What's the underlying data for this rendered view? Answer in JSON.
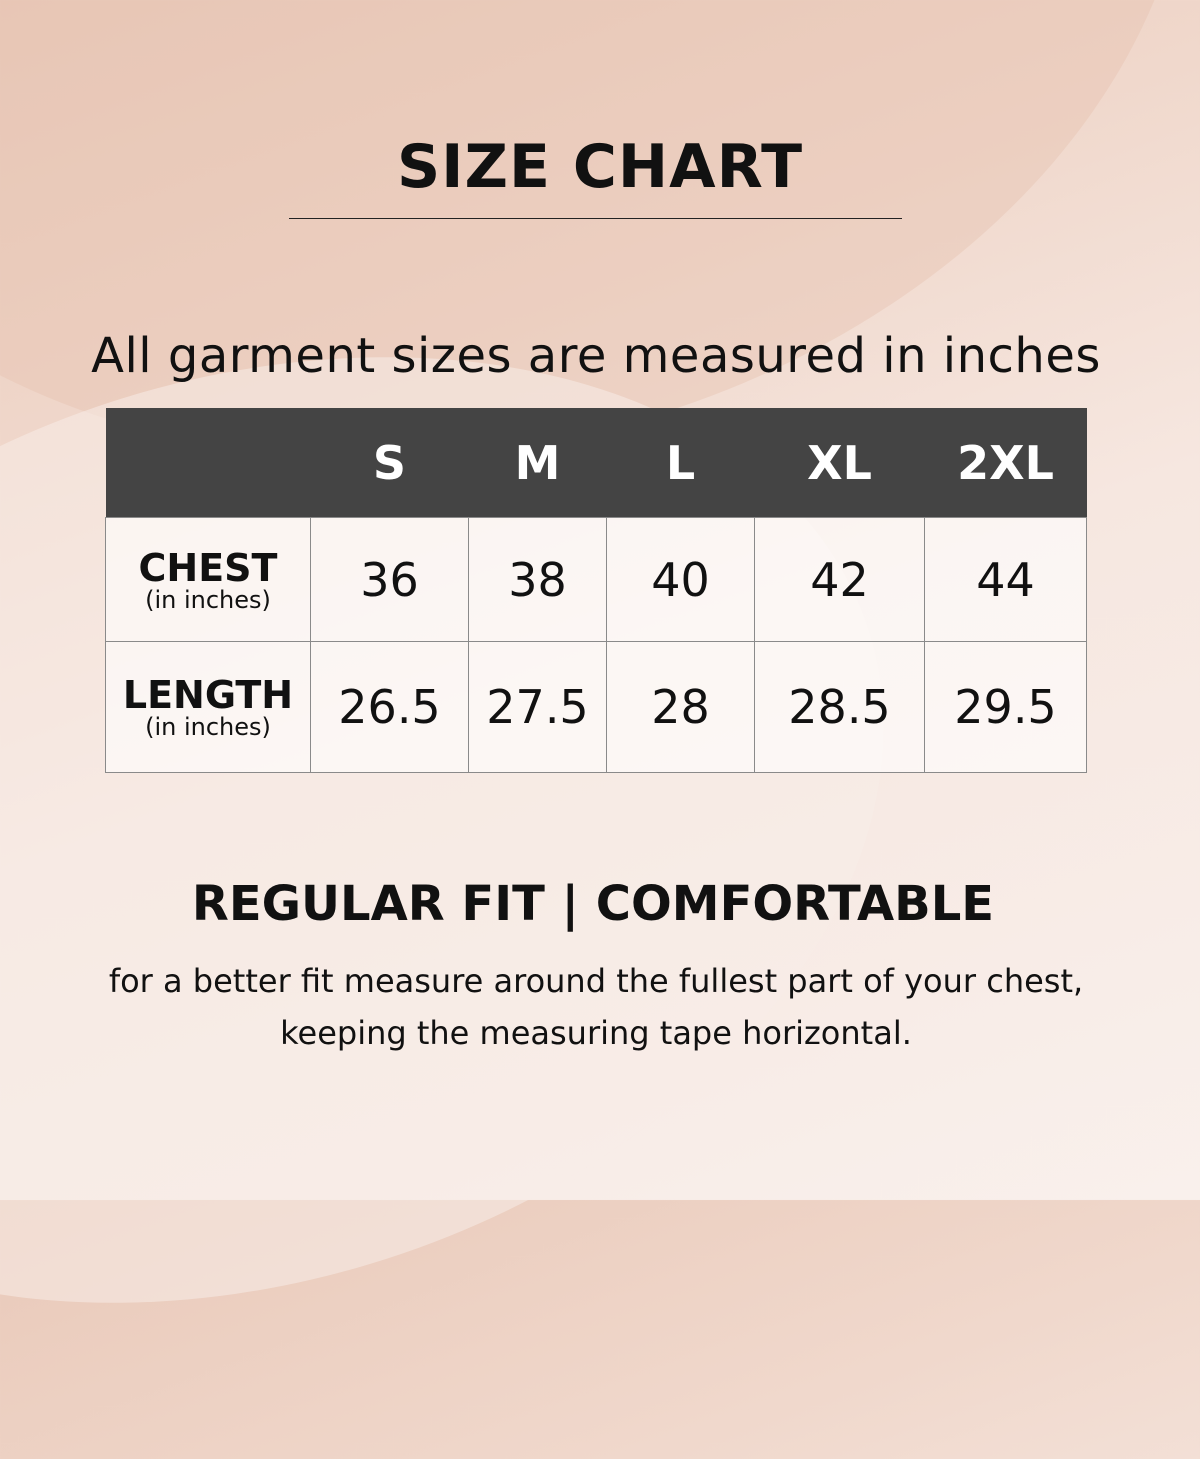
{
  "title": "SIZE CHART",
  "subtitle": "All garment sizes are measured in inches",
  "table": {
    "headers": [
      "",
      "S",
      "M",
      "L",
      "XL",
      "2XL"
    ],
    "rows": [
      {
        "label": "CHEST",
        "unit": "(in inches)",
        "values": [
          "36",
          "38",
          "40",
          "42",
          "44"
        ]
      },
      {
        "label": "LENGTH",
        "unit": "(in inches)",
        "values": [
          "26.5",
          "27.5",
          "28",
          "28.5",
          "29.5"
        ]
      }
    ]
  },
  "fit": "REGULAR FIT | COMFORTABLE",
  "note_lines": [
    "for a better fit measure around the fullest part of your chest,",
    "keeping the measuring tape horizontal."
  ],
  "colors": {
    "header_bg": "#444444",
    "background": "#f3e1d8"
  }
}
